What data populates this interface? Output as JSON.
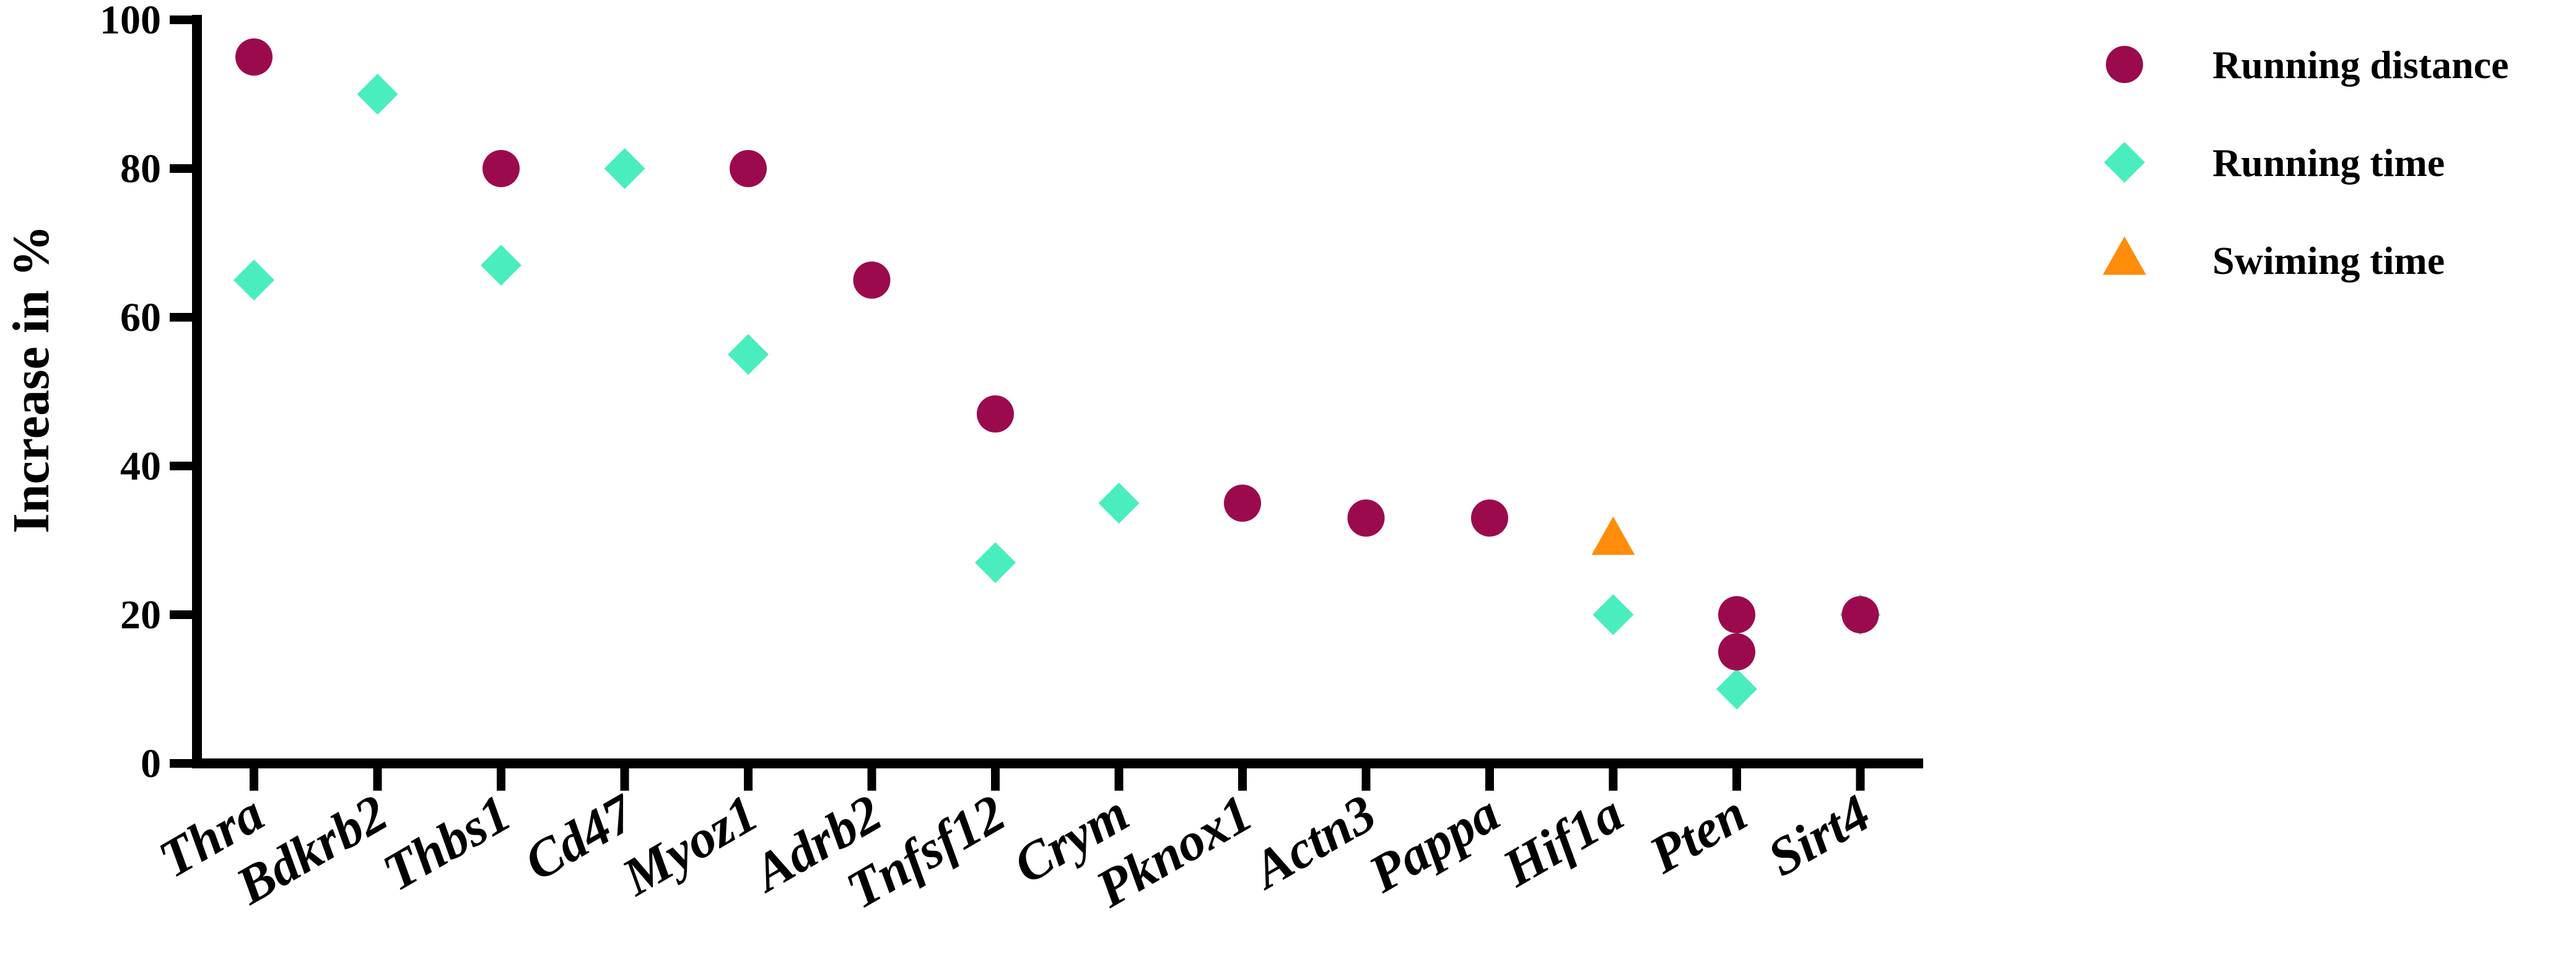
{
  "chart_data": {
    "type": "scatter",
    "ylabel": "Increase in %",
    "xlabel": "",
    "title": "",
    "ylim": [
      0,
      100
    ],
    "yticks": [
      0,
      20,
      40,
      60,
      80,
      100
    ],
    "categories": [
      "Thra",
      "Bdkrb2",
      "Thbs1",
      "Cd47",
      "Myoz1",
      "Adrb2",
      "Tnfsf12",
      "Crym",
      "Pknox1",
      "Actn3",
      "Pappa",
      "Hif1a",
      "Pten",
      "Sirt4"
    ],
    "series": [
      {
        "name": "Running distance",
        "marker": "circle",
        "color": "#9c0a4e",
        "points": [
          {
            "x": "Thra",
            "y": 95
          },
          {
            "x": "Thbs1",
            "y": 80
          },
          {
            "x": "Myoz1",
            "y": 80
          },
          {
            "x": "Adrb2",
            "y": 65
          },
          {
            "x": "Tnfsf12",
            "y": 47
          },
          {
            "x": "Pknox1",
            "y": 35
          },
          {
            "x": "Actn3",
            "y": 33
          },
          {
            "x": "Pappa",
            "y": 33
          },
          {
            "x": "Pten",
            "y": 20
          },
          {
            "x": "Pten",
            "y": 15
          },
          {
            "x": "Sirt4",
            "y": 20
          }
        ]
      },
      {
        "name": "Running time",
        "marker": "diamond",
        "color": "#4aeebe",
        "points": [
          {
            "x": "Thra",
            "y": 65
          },
          {
            "x": "Bdkrb2",
            "y": 90
          },
          {
            "x": "Thbs1",
            "y": 67
          },
          {
            "x": "Cd47",
            "y": 80
          },
          {
            "x": "Myoz1",
            "y": 55
          },
          {
            "x": "Tnfsf12",
            "y": 27
          },
          {
            "x": "Crym",
            "y": 35
          },
          {
            "x": "Hif1a",
            "y": 20
          },
          {
            "x": "Pten",
            "y": 10
          },
          {
            "x": "Sirt4",
            "y": 20
          }
        ]
      },
      {
        "name": "Swiming time",
        "marker": "triangle",
        "color": "#ff8c0a",
        "points": [
          {
            "x": "Hif1a",
            "y": 30
          }
        ]
      }
    ],
    "legend_position": "top-right",
    "grid": false
  }
}
